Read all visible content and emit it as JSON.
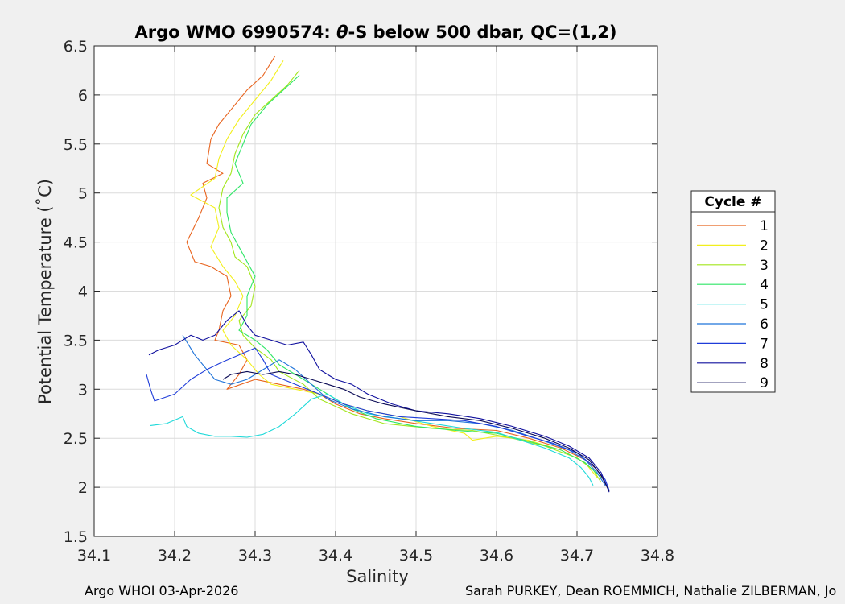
{
  "chart_data": {
    "type": "line",
    "title_prefix": "Argo WMO 6990574: ",
    "title_symbol": "θ",
    "title_suffix": "-S below 500 dbar,  QC=(1,2)",
    "xlabel": "Salinity",
    "ylabel": "Potential Temperature (˚C)",
    "xlim": [
      34.1,
      34.8
    ],
    "ylim": [
      1.5,
      6.5
    ],
    "xticks": [
      "34.1",
      "34.2",
      "34.3",
      "34.4",
      "34.5",
      "34.6",
      "34.7",
      "34.8"
    ],
    "yticks": [
      "1.5",
      "2",
      "2.5",
      "3",
      "3.5",
      "4",
      "4.5",
      "5",
      "5.5",
      "6",
      "6.5"
    ],
    "grid": true,
    "legend_title": "Cycle #",
    "legend_position": "right-outside",
    "series": [
      {
        "name": "1",
        "color": "#e8641e",
        "points": [
          [
            34.325,
            6.4
          ],
          [
            34.31,
            6.2
          ],
          [
            34.29,
            6.05
          ],
          [
            34.27,
            5.85
          ],
          [
            34.255,
            5.7
          ],
          [
            34.245,
            5.55
          ],
          [
            34.24,
            5.3
          ],
          [
            34.26,
            5.2
          ],
          [
            34.235,
            5.1
          ],
          [
            34.24,
            4.95
          ],
          [
            34.23,
            4.75
          ],
          [
            34.215,
            4.5
          ],
          [
            34.225,
            4.3
          ],
          [
            34.245,
            4.25
          ],
          [
            34.265,
            4.15
          ],
          [
            34.27,
            3.95
          ],
          [
            34.26,
            3.8
          ],
          [
            34.255,
            3.6
          ],
          [
            34.25,
            3.5
          ],
          [
            34.28,
            3.45
          ],
          [
            34.29,
            3.3
          ],
          [
            34.28,
            3.15
          ],
          [
            34.27,
            3.05
          ],
          [
            34.265,
            3.0
          ],
          [
            34.3,
            3.1
          ],
          [
            34.33,
            3.05
          ],
          [
            34.36,
            3.0
          ],
          [
            34.38,
            2.95
          ],
          [
            34.4,
            2.85
          ],
          [
            34.43,
            2.75
          ],
          [
            34.46,
            2.7
          ],
          [
            34.5,
            2.65
          ],
          [
            34.55,
            2.6
          ],
          [
            34.6,
            2.58
          ],
          [
            34.64,
            2.5
          ],
          [
            34.68,
            2.4
          ],
          [
            34.71,
            2.28
          ],
          [
            34.725,
            2.18
          ],
          [
            34.735,
            2.05
          ]
        ]
      },
      {
        "name": "2",
        "color": "#f2ef1c",
        "points": [
          [
            34.335,
            6.35
          ],
          [
            34.32,
            6.15
          ],
          [
            34.3,
            5.95
          ],
          [
            34.28,
            5.75
          ],
          [
            34.265,
            5.55
          ],
          [
            34.255,
            5.35
          ],
          [
            34.25,
            5.15
          ],
          [
            34.22,
            4.98
          ],
          [
            34.25,
            4.85
          ],
          [
            34.255,
            4.65
          ],
          [
            34.245,
            4.45
          ],
          [
            34.26,
            4.25
          ],
          [
            34.275,
            4.1
          ],
          [
            34.285,
            3.95
          ],
          [
            34.275,
            3.75
          ],
          [
            34.26,
            3.6
          ],
          [
            34.27,
            3.45
          ],
          [
            34.29,
            3.3
          ],
          [
            34.305,
            3.15
          ],
          [
            34.32,
            3.05
          ],
          [
            34.35,
            3.0
          ],
          [
            34.38,
            2.95
          ],
          [
            34.41,
            2.85
          ],
          [
            34.44,
            2.78
          ],
          [
            34.48,
            2.72
          ],
          [
            34.52,
            2.62
          ],
          [
            34.56,
            2.55
          ],
          [
            34.57,
            2.48
          ],
          [
            34.6,
            2.52
          ],
          [
            34.64,
            2.48
          ],
          [
            34.68,
            2.38
          ],
          [
            34.71,
            2.25
          ],
          [
            34.725,
            2.1
          ]
        ]
      },
      {
        "name": "3",
        "color": "#a3e61c",
        "points": [
          [
            34.355,
            6.25
          ],
          [
            34.34,
            6.1
          ],
          [
            34.32,
            5.95
          ],
          [
            34.3,
            5.8
          ],
          [
            34.285,
            5.6
          ],
          [
            34.275,
            5.4
          ],
          [
            34.27,
            5.2
          ],
          [
            34.26,
            5.05
          ],
          [
            34.255,
            4.85
          ],
          [
            34.26,
            4.65
          ],
          [
            34.27,
            4.5
          ],
          [
            34.275,
            4.35
          ],
          [
            34.29,
            4.25
          ],
          [
            34.3,
            4.05
          ],
          [
            34.295,
            3.85
          ],
          [
            34.28,
            3.7
          ],
          [
            34.285,
            3.55
          ],
          [
            34.3,
            3.42
          ],
          [
            34.32,
            3.3
          ],
          [
            34.33,
            3.18
          ],
          [
            34.36,
            3.05
          ],
          [
            34.38,
            2.9
          ],
          [
            34.42,
            2.75
          ],
          [
            34.46,
            2.65
          ],
          [
            34.52,
            2.6
          ],
          [
            34.57,
            2.58
          ],
          [
            34.62,
            2.5
          ],
          [
            34.66,
            2.42
          ],
          [
            34.7,
            2.3
          ],
          [
            34.72,
            2.18
          ],
          [
            34.73,
            2.05
          ]
        ]
      },
      {
        "name": "4",
        "color": "#2ee666",
        "points": [
          [
            34.355,
            6.2
          ],
          [
            34.335,
            6.05
          ],
          [
            34.315,
            5.9
          ],
          [
            34.295,
            5.7
          ],
          [
            34.285,
            5.5
          ],
          [
            34.275,
            5.3
          ],
          [
            34.285,
            5.1
          ],
          [
            34.265,
            4.95
          ],
          [
            34.265,
            4.8
          ],
          [
            34.27,
            4.6
          ],
          [
            34.28,
            4.45
          ],
          [
            34.29,
            4.3
          ],
          [
            34.3,
            4.15
          ],
          [
            34.29,
            3.95
          ],
          [
            34.29,
            3.75
          ],
          [
            34.28,
            3.6
          ],
          [
            34.3,
            3.5
          ],
          [
            34.315,
            3.4
          ],
          [
            34.33,
            3.25
          ],
          [
            34.35,
            3.15
          ],
          [
            34.37,
            3.05
          ],
          [
            34.39,
            2.95
          ],
          [
            34.42,
            2.8
          ],
          [
            34.45,
            2.7
          ],
          [
            34.5,
            2.62
          ],
          [
            34.55,
            2.58
          ],
          [
            34.6,
            2.55
          ],
          [
            34.64,
            2.47
          ],
          [
            34.68,
            2.38
          ],
          [
            34.71,
            2.25
          ],
          [
            34.73,
            2.1
          ]
        ]
      },
      {
        "name": "5",
        "color": "#1ed9d9",
        "points": [
          [
            34.17,
            2.63
          ],
          [
            34.19,
            2.65
          ],
          [
            34.21,
            2.72
          ],
          [
            34.215,
            2.62
          ],
          [
            34.23,
            2.55
          ],
          [
            34.25,
            2.52
          ],
          [
            34.27,
            2.52
          ],
          [
            34.29,
            2.51
          ],
          [
            34.31,
            2.54
          ],
          [
            34.33,
            2.62
          ],
          [
            34.35,
            2.75
          ],
          [
            34.37,
            2.9
          ],
          [
            34.39,
            2.95
          ],
          [
            34.41,
            2.85
          ],
          [
            34.44,
            2.75
          ],
          [
            34.48,
            2.7
          ],
          [
            34.52,
            2.65
          ],
          [
            34.56,
            2.6
          ],
          [
            34.6,
            2.56
          ],
          [
            34.63,
            2.48
          ],
          [
            34.66,
            2.4
          ],
          [
            34.69,
            2.3
          ],
          [
            34.705,
            2.2
          ],
          [
            34.715,
            2.1
          ],
          [
            34.72,
            2.02
          ]
        ]
      },
      {
        "name": "6",
        "color": "#1e73d9",
        "points": [
          [
            34.21,
            3.55
          ],
          [
            34.225,
            3.35
          ],
          [
            34.24,
            3.2
          ],
          [
            34.25,
            3.1
          ],
          [
            34.27,
            3.05
          ],
          [
            34.29,
            3.1
          ],
          [
            34.31,
            3.2
          ],
          [
            34.33,
            3.3
          ],
          [
            34.35,
            3.2
          ],
          [
            34.37,
            3.05
          ],
          [
            34.39,
            2.9
          ],
          [
            34.42,
            2.8
          ],
          [
            34.46,
            2.72
          ],
          [
            34.5,
            2.68
          ],
          [
            34.54,
            2.68
          ],
          [
            34.58,
            2.65
          ],
          [
            34.62,
            2.58
          ],
          [
            34.66,
            2.47
          ],
          [
            34.69,
            2.38
          ],
          [
            34.71,
            2.28
          ],
          [
            34.725,
            2.15
          ],
          [
            34.735,
            2.02
          ]
        ]
      },
      {
        "name": "7",
        "color": "#1e3cd9",
        "points": [
          [
            34.165,
            3.15
          ],
          [
            34.17,
            3.0
          ],
          [
            34.175,
            2.88
          ],
          [
            34.2,
            2.95
          ],
          [
            34.22,
            3.1
          ],
          [
            34.24,
            3.2
          ],
          [
            34.26,
            3.28
          ],
          [
            34.28,
            3.35
          ],
          [
            34.3,
            3.42
          ],
          [
            34.31,
            3.3
          ],
          [
            34.32,
            3.15
          ],
          [
            34.35,
            3.05
          ],
          [
            34.38,
            2.95
          ],
          [
            34.41,
            2.85
          ],
          [
            34.44,
            2.78
          ],
          [
            34.48,
            2.72
          ],
          [
            34.52,
            2.7
          ],
          [
            34.56,
            2.68
          ],
          [
            34.6,
            2.62
          ],
          [
            34.64,
            2.52
          ],
          [
            34.67,
            2.45
          ],
          [
            34.7,
            2.35
          ],
          [
            34.72,
            2.22
          ],
          [
            34.735,
            2.08
          ],
          [
            34.74,
            1.97
          ]
        ]
      },
      {
        "name": "8",
        "color": "#10109e",
        "points": [
          [
            34.168,
            3.35
          ],
          [
            34.18,
            3.4
          ],
          [
            34.2,
            3.45
          ],
          [
            34.22,
            3.55
          ],
          [
            34.235,
            3.5
          ],
          [
            34.25,
            3.55
          ],
          [
            34.265,
            3.7
          ],
          [
            34.28,
            3.8
          ],
          [
            34.29,
            3.65
          ],
          [
            34.3,
            3.55
          ],
          [
            34.32,
            3.5
          ],
          [
            34.34,
            3.45
          ],
          [
            34.36,
            3.48
          ],
          [
            34.37,
            3.35
          ],
          [
            34.38,
            3.2
          ],
          [
            34.4,
            3.1
          ],
          [
            34.42,
            3.05
          ],
          [
            34.44,
            2.95
          ],
          [
            34.47,
            2.85
          ],
          [
            34.5,
            2.78
          ],
          [
            34.54,
            2.75
          ],
          [
            34.58,
            2.7
          ],
          [
            34.62,
            2.62
          ],
          [
            34.66,
            2.52
          ],
          [
            34.69,
            2.42
          ],
          [
            34.715,
            2.3
          ],
          [
            34.73,
            2.15
          ],
          [
            34.74,
            1.95
          ]
        ]
      },
      {
        "name": "9",
        "color": "#0a0a55",
        "points": [
          [
            34.26,
            3.1
          ],
          [
            34.27,
            3.15
          ],
          [
            34.29,
            3.18
          ],
          [
            34.31,
            3.15
          ],
          [
            34.33,
            3.18
          ],
          [
            34.35,
            3.15
          ],
          [
            34.37,
            3.1
          ],
          [
            34.39,
            3.05
          ],
          [
            34.41,
            3.0
          ],
          [
            34.43,
            2.92
          ],
          [
            34.46,
            2.85
          ],
          [
            34.5,
            2.78
          ],
          [
            34.54,
            2.72
          ],
          [
            34.58,
            2.68
          ],
          [
            34.62,
            2.6
          ],
          [
            34.66,
            2.5
          ],
          [
            34.69,
            2.4
          ],
          [
            34.715,
            2.28
          ],
          [
            34.73,
            2.12
          ],
          [
            34.74,
            1.96
          ]
        ]
      }
    ]
  },
  "footer": {
    "left": "Argo WHOI 03-Apr-2026",
    "right": "Sarah PURKEY, Dean ROEMMICH, Nathalie ZILBERMAN, Jo"
  }
}
